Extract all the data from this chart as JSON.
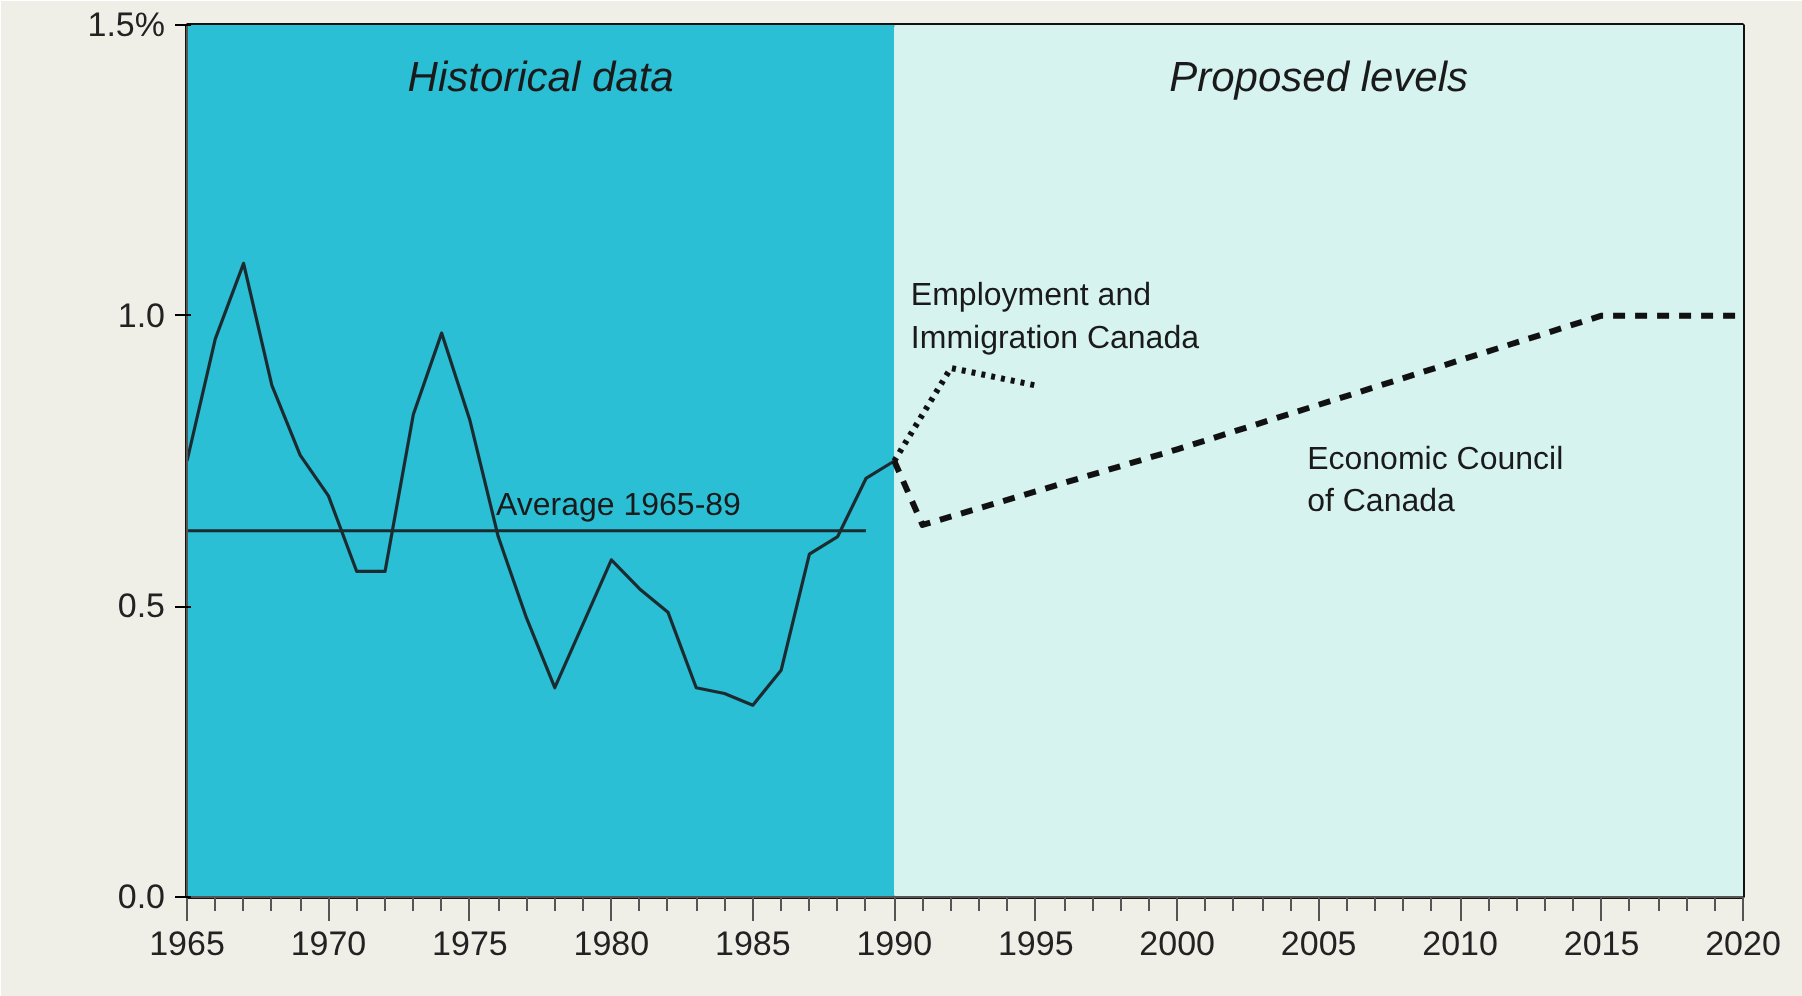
{
  "chart_data": {
    "type": "line",
    "xlim": [
      1965,
      2020
    ],
    "ylim": [
      0,
      1.5
    ],
    "xticks": [
      1965,
      {
        "value": 1966,
        "label": null
      },
      {
        "value": 1967,
        "label": null
      },
      {
        "value": 1968,
        "label": null
      },
      {
        "value": 1969,
        "label": null
      },
      1970,
      {
        "value": 1971,
        "label": null
      },
      {
        "value": 1972,
        "label": null
      },
      {
        "value": 1973,
        "label": null
      },
      {
        "value": 1974,
        "label": null
      },
      1975,
      {
        "value": 1976,
        "label": null
      },
      {
        "value": 1977,
        "label": null
      },
      {
        "value": 1978,
        "label": null
      },
      {
        "value": 1979,
        "label": null
      },
      1980,
      {
        "value": 1981,
        "label": null
      },
      {
        "value": 1982,
        "label": null
      },
      {
        "value": 1983,
        "label": null
      },
      {
        "value": 1984,
        "label": null
      },
      1985,
      {
        "value": 1986,
        "label": null
      },
      {
        "value": 1987,
        "label": null
      },
      {
        "value": 1988,
        "label": null
      },
      {
        "value": 1989,
        "label": null
      },
      1990,
      {
        "value": 1991,
        "label": null
      },
      {
        "value": 1992,
        "label": null
      },
      {
        "value": 1993,
        "label": null
      },
      {
        "value": 1994,
        "label": null
      },
      1995,
      {
        "value": 1996,
        "label": null
      },
      {
        "value": 1997,
        "label": null
      },
      {
        "value": 1998,
        "label": null
      },
      {
        "value": 1999,
        "label": null
      },
      2000,
      {
        "value": 2001,
        "label": null
      },
      {
        "value": 2002,
        "label": null
      },
      {
        "value": 2003,
        "label": null
      },
      {
        "value": 2004,
        "label": null
      },
      2005,
      {
        "value": 2006,
        "label": null
      },
      {
        "value": 2007,
        "label": null
      },
      {
        "value": 2008,
        "label": null
      },
      {
        "value": 2009,
        "label": null
      },
      2010,
      {
        "value": 2011,
        "label": null
      },
      {
        "value": 2012,
        "label": null
      },
      {
        "value": 2013,
        "label": null
      },
      {
        "value": 2014,
        "label": null
      },
      2015,
      {
        "value": 2016,
        "label": null
      },
      {
        "value": 2017,
        "label": null
      },
      {
        "value": 2018,
        "label": null
      },
      {
        "value": 2019,
        "label": null
      },
      2020
    ],
    "yticks": [
      {
        "value": 0,
        "label": "0.0"
      },
      0.5,
      {
        "value": 1,
        "label": "1.0"
      },
      {
        "value": 1.5,
        "label": "1.5%"
      }
    ],
    "grid": false,
    "marker": "none",
    "bands": [
      {
        "axis": "x",
        "from": 1965,
        "to": 1990,
        "label": "Historical data",
        "color": "#2bbfd6"
      },
      {
        "axis": "x",
        "from": 1990,
        "to": 2020,
        "label": "Proposed levels",
        "color": "#d6f3f0"
      }
    ],
    "series": [
      {
        "color": "#1c2b30",
        "line_style": "solid",
        "x": [
          1965,
          1966,
          1967,
          1968,
          1969,
          1970,
          1971,
          1972,
          1973,
          1974,
          1975,
          1976,
          1977,
          1978,
          1979,
          1980,
          1981,
          1982,
          1983,
          1984,
          1985,
          1986,
          1987,
          1988,
          1989,
          1990
        ],
        "values": [
          0.75,
          0.96,
          1.09,
          0.88,
          0.76,
          0.69,
          0.56,
          0.56,
          0.83,
          0.97,
          0.82,
          0.62,
          0.48,
          0.36,
          0.47,
          0.58,
          0.53,
          0.49,
          0.36,
          0.35,
          0.33,
          0.39,
          0.59,
          0.62,
          0.72,
          0.75
        ]
      },
      {
        "name": "Average 1965-89",
        "color": "#1c2b30",
        "line_style": "solid",
        "x": [
          1965,
          1989
        ],
        "values": [
          0.63,
          0.63
        ]
      },
      {
        "name": "Employment and Immigration Canada",
        "color": "#111111",
        "line_style": "dotted",
        "x": [
          1990,
          1992,
          1995
        ],
        "values": [
          0.75,
          0.91,
          0.88
        ]
      },
      {
        "name": "Economic Council of Canada",
        "color": "#111111",
        "line_style": "dashed",
        "x": [
          1990,
          1991,
          2000,
          2015,
          2020
        ],
        "values": [
          0.75,
          0.64,
          0.77,
          1.0,
          1.0
        ]
      }
    ]
  }
}
